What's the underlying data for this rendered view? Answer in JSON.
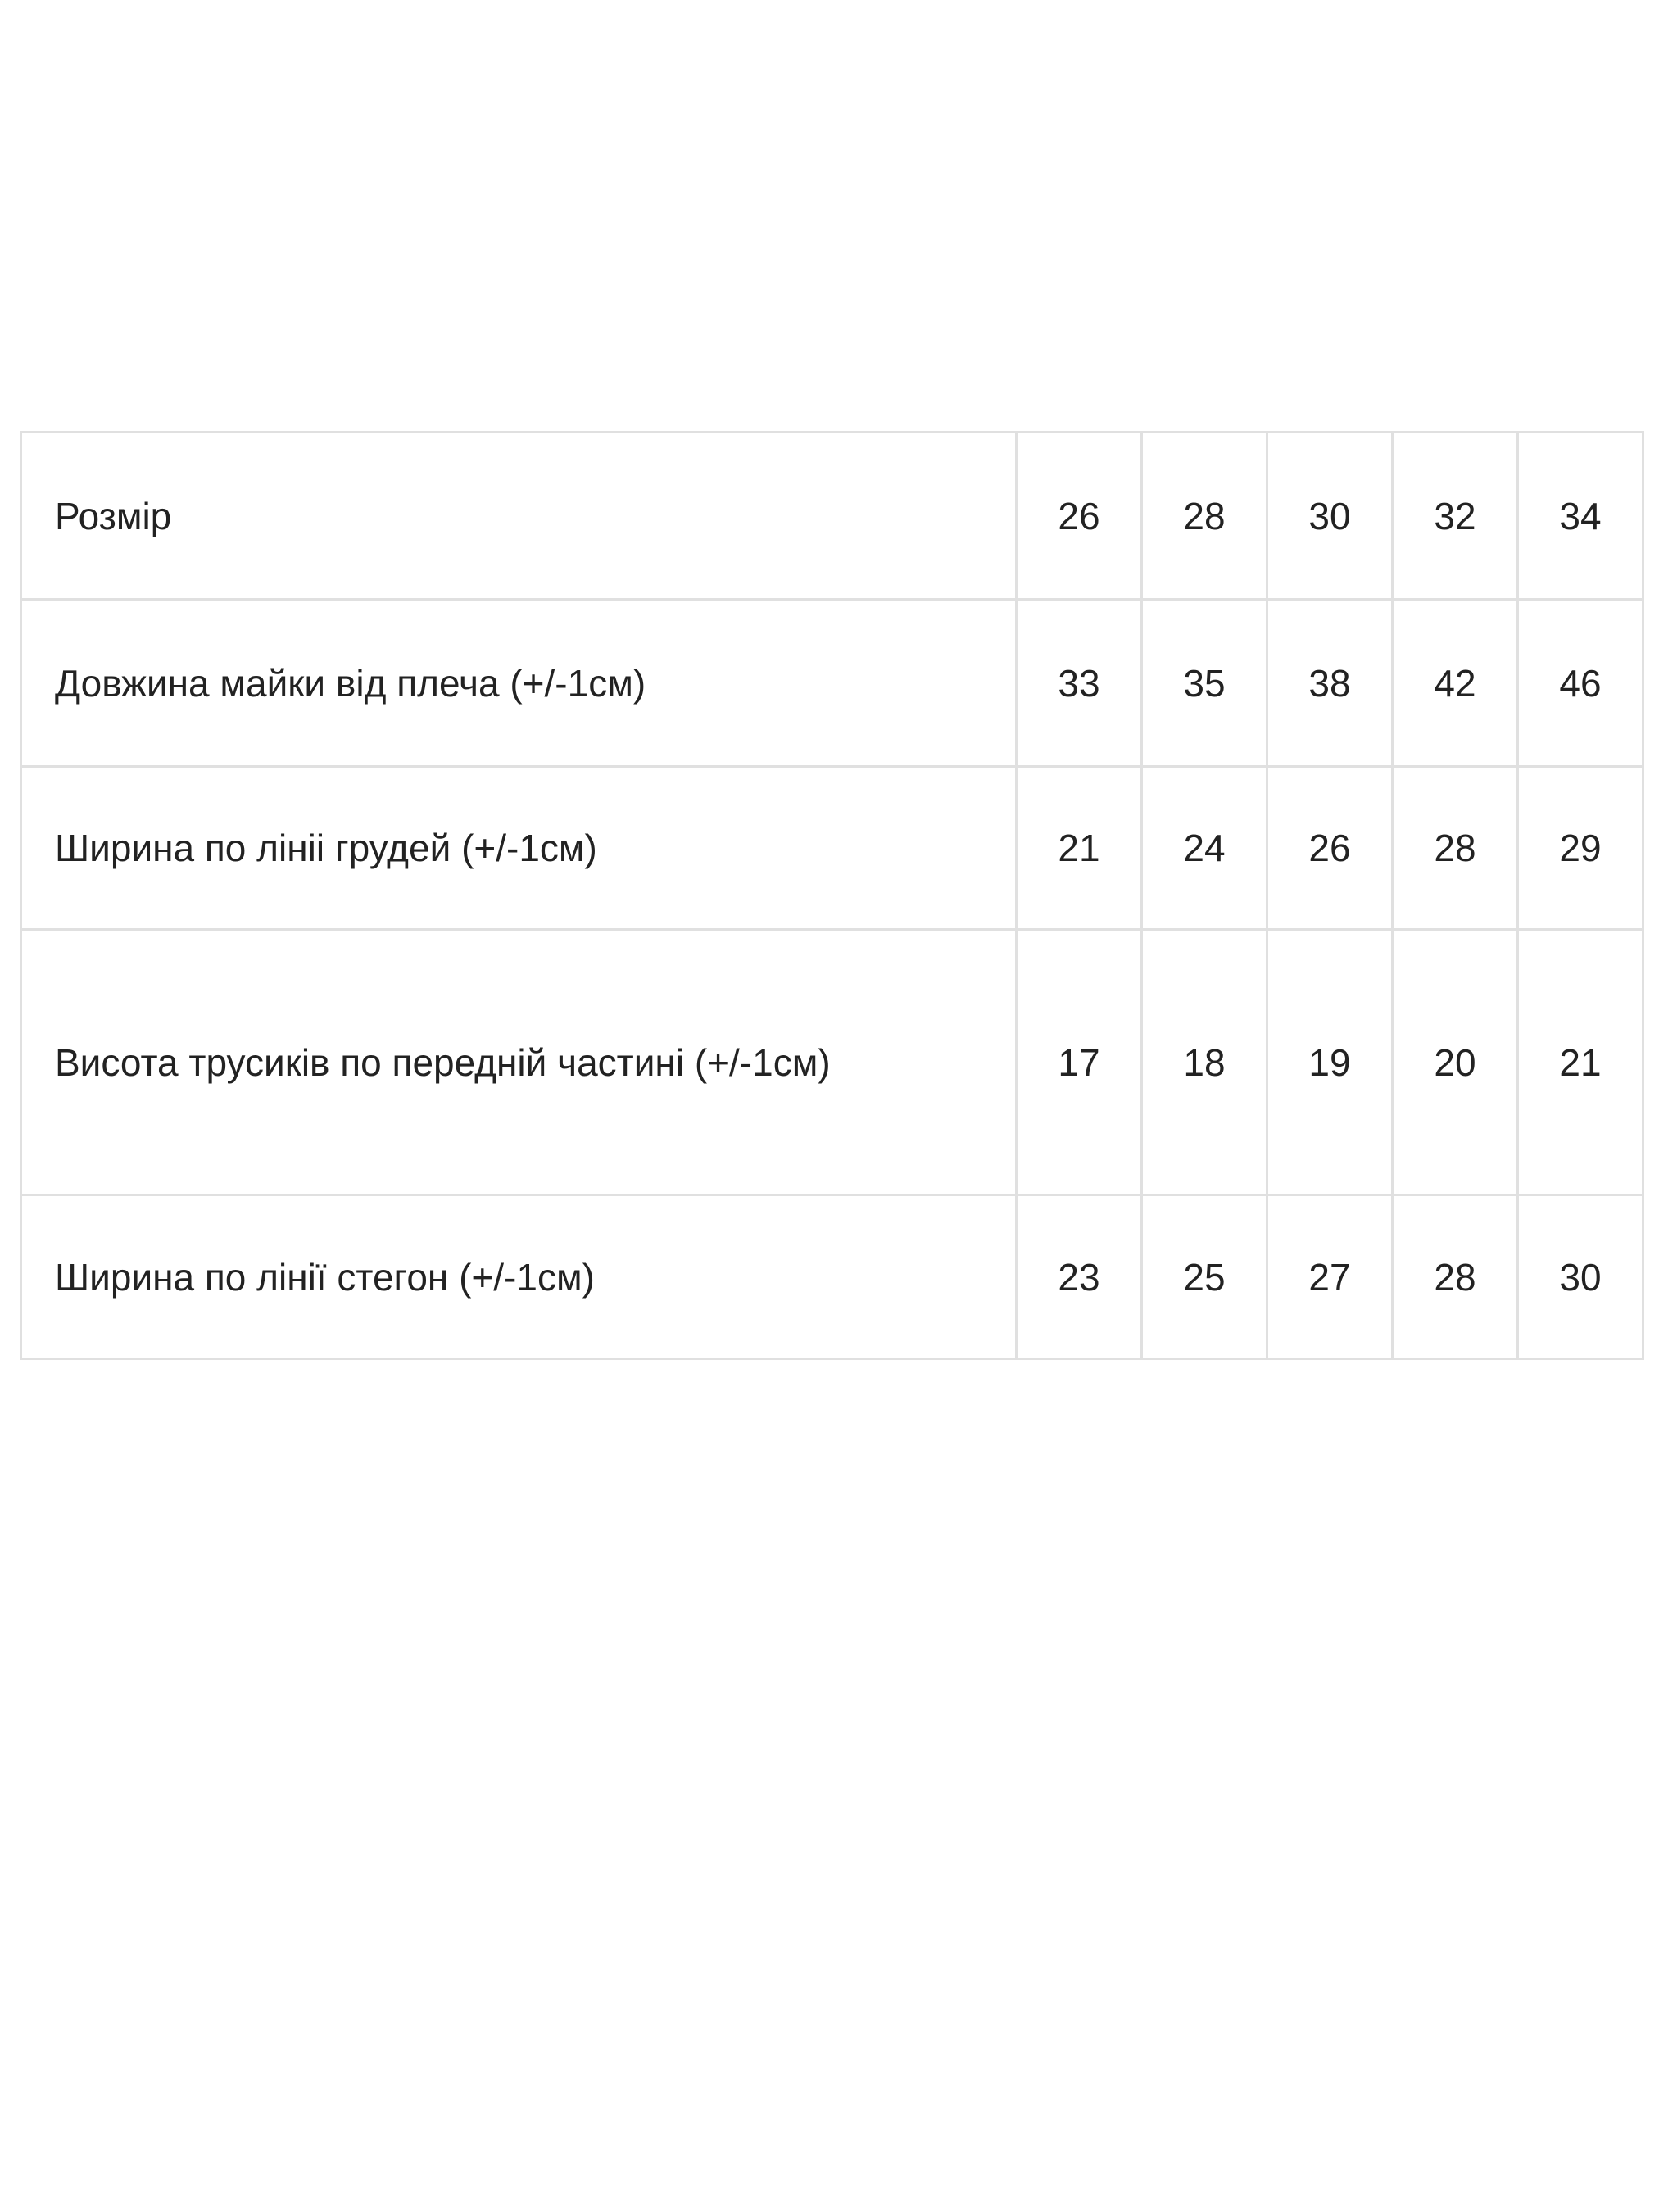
{
  "size_table": {
    "rows": [
      {
        "label": "Розмір",
        "values": [
          "26",
          "28",
          "30",
          "32",
          "34"
        ]
      },
      {
        "label": "Довжина майки від плеча (+/-1см)",
        "values": [
          "33",
          "35",
          "38",
          "42",
          "46"
        ]
      },
      {
        "label": "Ширина по лініі грудей (+/-1см)",
        "values": [
          "21",
          "24",
          "26",
          "28",
          "29"
        ]
      },
      {
        "label": "Висота трусиків по передній частині (+/-1см)",
        "values": [
          "17",
          "18",
          "19",
          "20",
          "21"
        ]
      },
      {
        "label": "Ширина по лінії стегон (+/-1см)",
        "values": [
          "23",
          "25",
          "27",
          "28",
          "30"
        ]
      }
    ]
  }
}
